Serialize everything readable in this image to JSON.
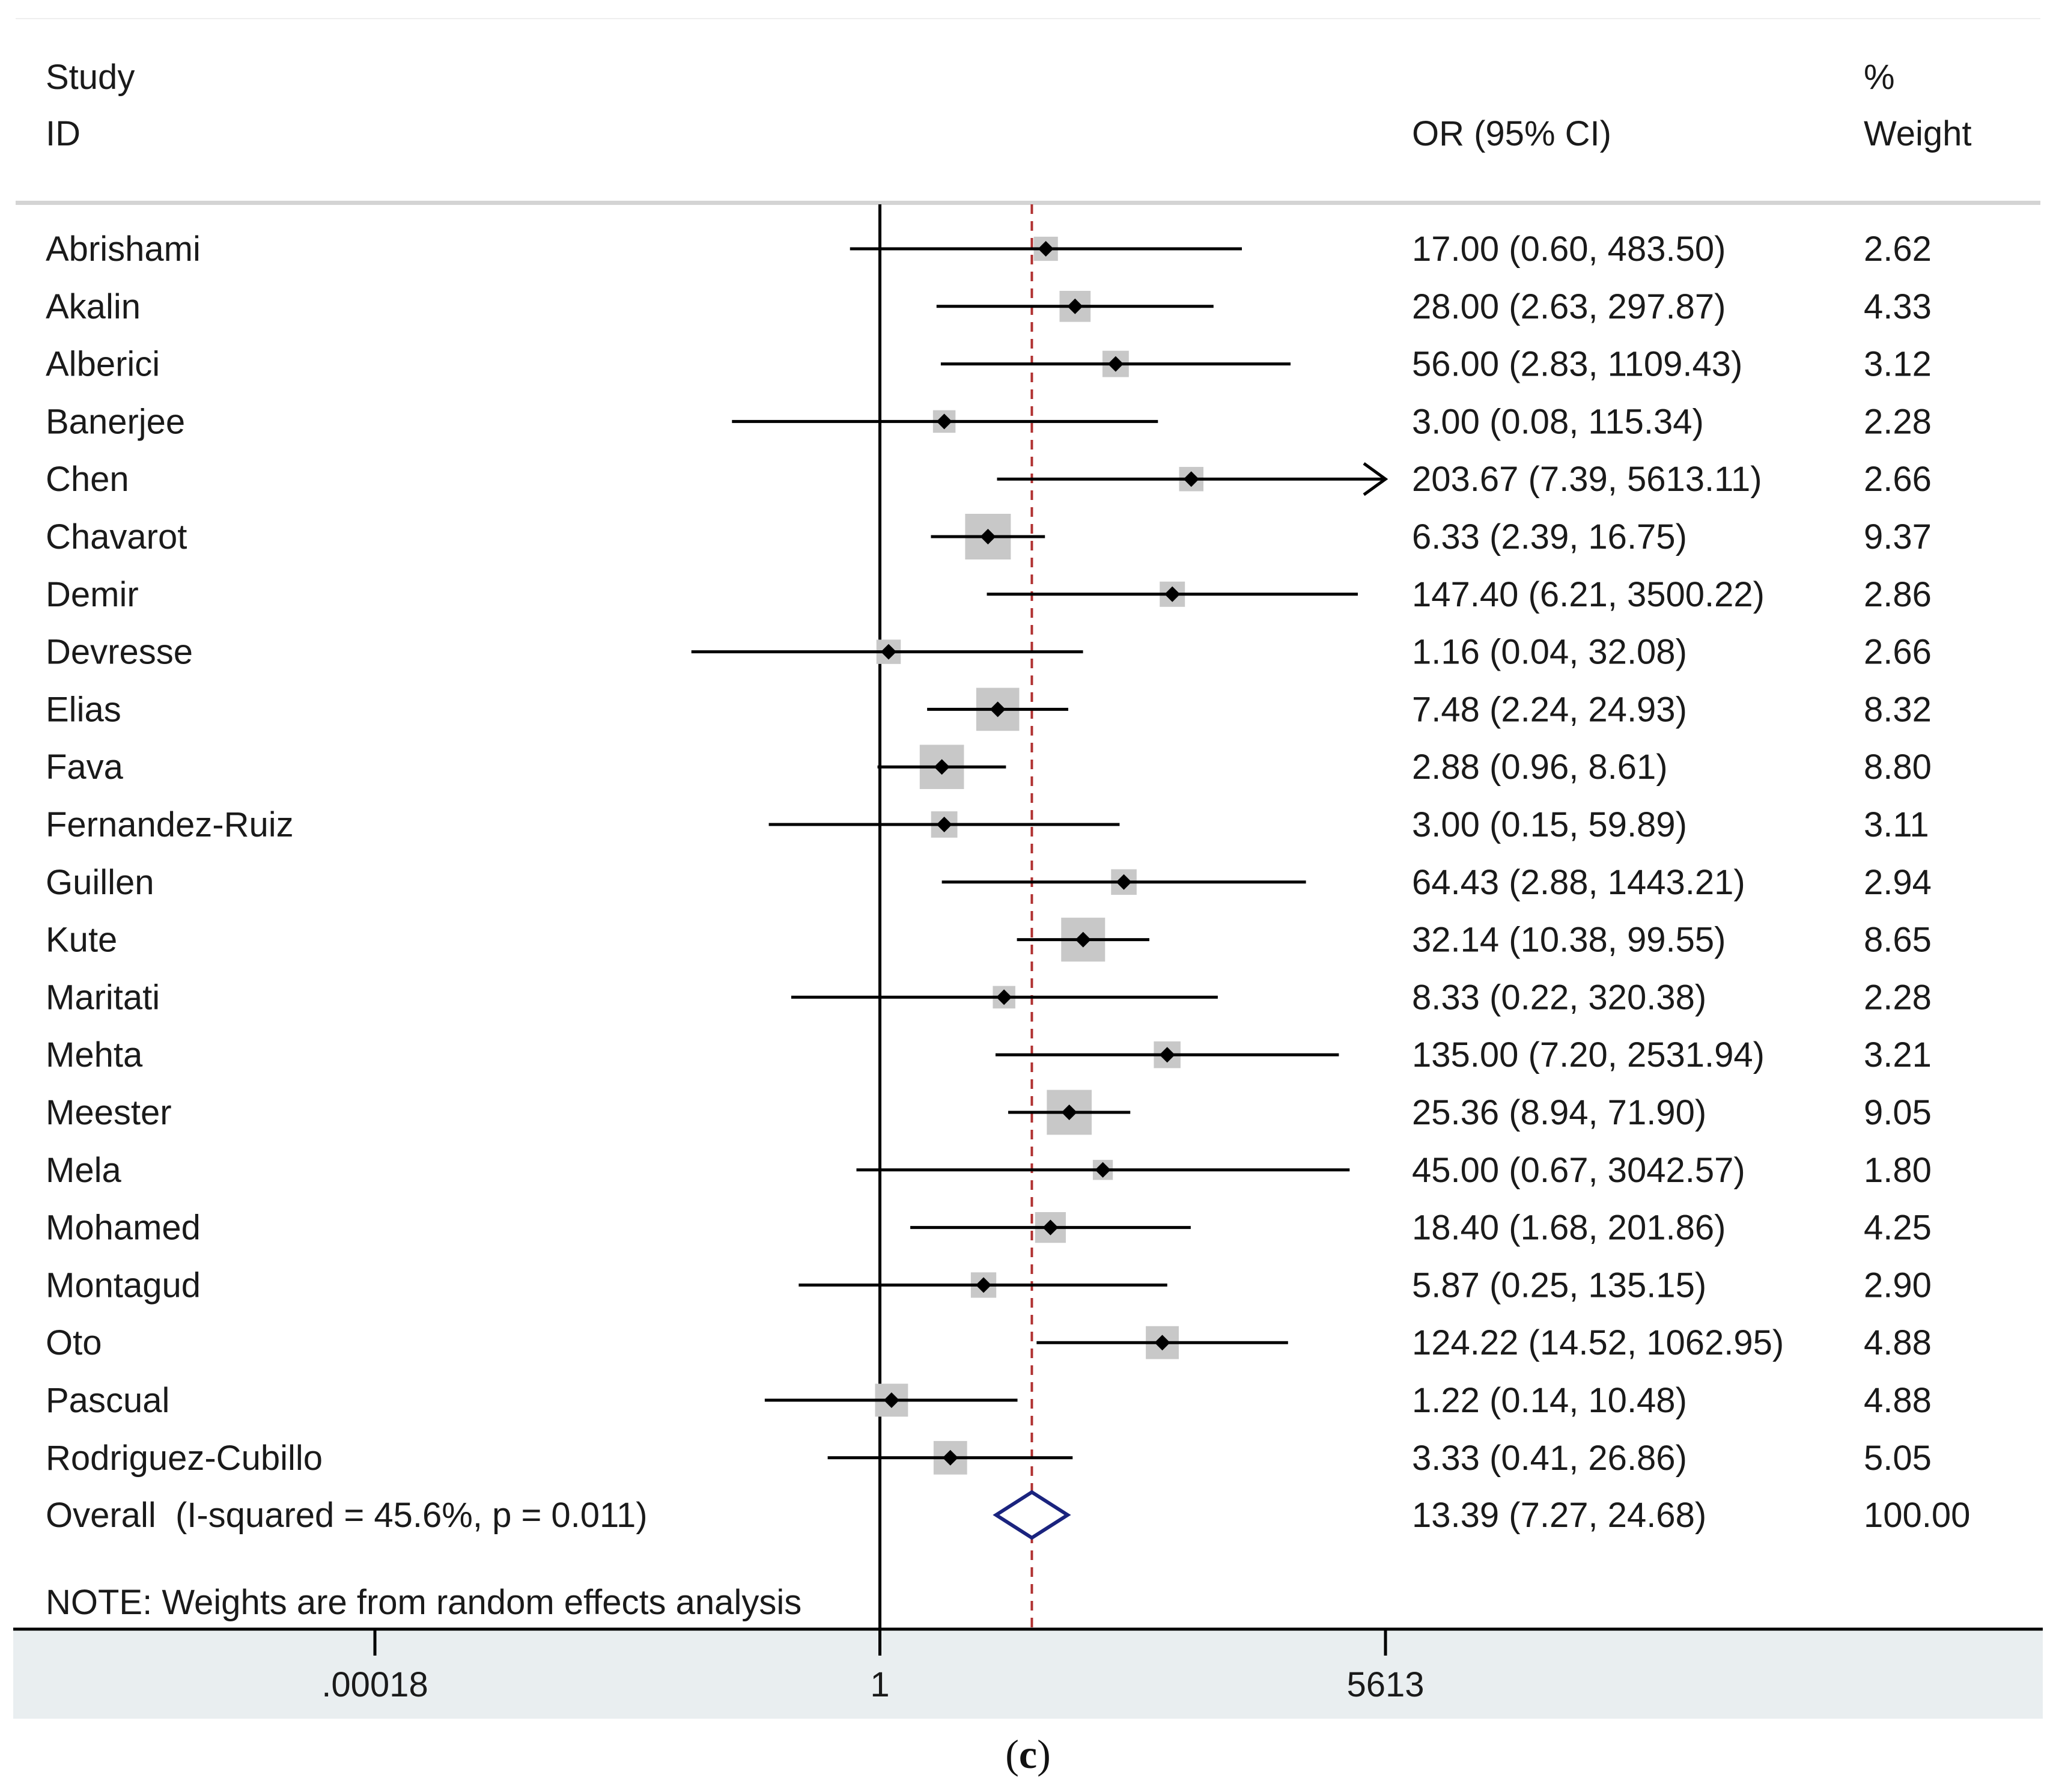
{
  "chart_data": {
    "type": "forest",
    "headers": {
      "study_line1": "Study",
      "study_line2": "ID",
      "or_header": "OR (95% CI)",
      "weight_line1": "%",
      "weight_line2": "Weight"
    },
    "x_scale": "log",
    "xlim": [
      0.00018,
      5613
    ],
    "xticks": [
      {
        "value": 0.00018,
        "label": ".00018"
      },
      {
        "value": 1,
        "label": "1"
      },
      {
        "value": 5613,
        "label": "5613"
      }
    ],
    "null_line": 1,
    "overall_line": 13.39,
    "studies": [
      {
        "name": "Abrishami",
        "or": 17.0,
        "lo": 0.6,
        "hi": 483.5,
        "ci_text": "17.00 (0.60, 483.50)",
        "weight": 2.62,
        "weight_text": "2.62"
      },
      {
        "name": "Akalin",
        "or": 28.0,
        "lo": 2.63,
        "hi": 297.87,
        "ci_text": "28.00 (2.63, 297.87)",
        "weight": 4.33,
        "weight_text": "4.33"
      },
      {
        "name": "Alberici",
        "or": 56.0,
        "lo": 2.83,
        "hi": 1109.43,
        "ci_text": "56.00 (2.83, 1109.43)",
        "weight": 3.12,
        "weight_text": "3.12"
      },
      {
        "name": "Banerjee",
        "or": 3.0,
        "lo": 0.08,
        "hi": 115.34,
        "ci_text": "3.00 (0.08, 115.34)",
        "weight": 2.28,
        "weight_text": "2.28"
      },
      {
        "name": "Chen",
        "or": 203.67,
        "lo": 7.39,
        "hi": 5613.11,
        "ci_text": "203.67 (7.39, 5613.11)",
        "weight": 2.66,
        "weight_text": "2.66",
        "arrow": true
      },
      {
        "name": "Chavarot",
        "or": 6.33,
        "lo": 2.39,
        "hi": 16.75,
        "ci_text": "6.33 (2.39, 16.75)",
        "weight": 9.37,
        "weight_text": "9.37"
      },
      {
        "name": "Demir",
        "or": 147.4,
        "lo": 6.21,
        "hi": 3500.22,
        "ci_text": "147.40 (6.21, 3500.22)",
        "weight": 2.86,
        "weight_text": "2.86"
      },
      {
        "name": "Devresse",
        "or": 1.16,
        "lo": 0.04,
        "hi": 32.08,
        "ci_text": "1.16 (0.04, 32.08)",
        "weight": 2.66,
        "weight_text": "2.66"
      },
      {
        "name": "Elias",
        "or": 7.48,
        "lo": 2.24,
        "hi": 24.93,
        "ci_text": "7.48 (2.24, 24.93)",
        "weight": 8.32,
        "weight_text": "8.32"
      },
      {
        "name": "Fava",
        "or": 2.88,
        "lo": 0.96,
        "hi": 8.61,
        "ci_text": "2.88 (0.96, 8.61)",
        "weight": 8.8,
        "weight_text": "8.80"
      },
      {
        "name": "Fernandez-Ruiz",
        "or": 3.0,
        "lo": 0.15,
        "hi": 59.89,
        "ci_text": "3.00 (0.15, 59.89)",
        "weight": 3.11,
        "weight_text": "3.11"
      },
      {
        "name": "Guillen",
        "or": 64.43,
        "lo": 2.88,
        "hi": 1443.21,
        "ci_text": "64.43 (2.88, 1443.21)",
        "weight": 2.94,
        "weight_text": "2.94"
      },
      {
        "name": "Kute",
        "or": 32.14,
        "lo": 10.38,
        "hi": 99.55,
        "ci_text": "32.14 (10.38, 99.55)",
        "weight": 8.65,
        "weight_text": "8.65"
      },
      {
        "name": "Maritati",
        "or": 8.33,
        "lo": 0.22,
        "hi": 320.38,
        "ci_text": "8.33 (0.22, 320.38)",
        "weight": 2.28,
        "weight_text": "2.28"
      },
      {
        "name": "Mehta",
        "or": 135.0,
        "lo": 7.2,
        "hi": 2531.94,
        "ci_text": "135.00 (7.20, 2531.94)",
        "weight": 3.21,
        "weight_text": "3.21"
      },
      {
        "name": "Meester",
        "or": 25.36,
        "lo": 8.94,
        "hi": 71.9,
        "ci_text": "25.36 (8.94, 71.90)",
        "weight": 9.05,
        "weight_text": "9.05"
      },
      {
        "name": "Mela",
        "or": 45.0,
        "lo": 0.67,
        "hi": 3042.57,
        "ci_text": "45.00 (0.67, 3042.57)",
        "weight": 1.8,
        "weight_text": "1.80"
      },
      {
        "name": "Mohamed",
        "or": 18.4,
        "lo": 1.68,
        "hi": 201.86,
        "ci_text": "18.40 (1.68, 201.86)",
        "weight": 4.25,
        "weight_text": "4.25"
      },
      {
        "name": "Montagud",
        "or": 5.87,
        "lo": 0.25,
        "hi": 135.15,
        "ci_text": "5.87 (0.25, 135.15)",
        "weight": 2.9,
        "weight_text": "2.90"
      },
      {
        "name": "Oto",
        "or": 124.22,
        "lo": 14.52,
        "hi": 1062.95,
        "ci_text": "124.22 (14.52, 1062.95)",
        "weight": 4.88,
        "weight_text": "4.88"
      },
      {
        "name": "Pascual",
        "or": 1.22,
        "lo": 0.14,
        "hi": 10.48,
        "ci_text": "1.22 (0.14, 10.48)",
        "weight": 4.88,
        "weight_text": "4.88"
      },
      {
        "name": "Rodriguez-Cubillo",
        "or": 3.33,
        "lo": 0.41,
        "hi": 26.86,
        "ci_text": "3.33 (0.41, 26.86)",
        "weight": 5.05,
        "weight_text": "5.05"
      }
    ],
    "overall": {
      "label": "Overall  (I-squared = 45.6%, p = 0.011)",
      "or": 13.39,
      "lo": 7.27,
      "hi": 24.68,
      "ci_text": "13.39 (7.27, 24.68)",
      "weight_text": "100.00"
    },
    "note": "NOTE: Weights are from random effects analysis"
  },
  "caption": {
    "open": "(",
    "letter": "c",
    "close": ")"
  },
  "colors": {
    "text": "#1a1a1a",
    "lines": "#000000",
    "weight_box": "#c8c8c8",
    "overall_diamond": "#1a237e",
    "overall_line": "#b03030",
    "axis_band": "#e9eef0",
    "header_rule": "#d4d4d4"
  }
}
